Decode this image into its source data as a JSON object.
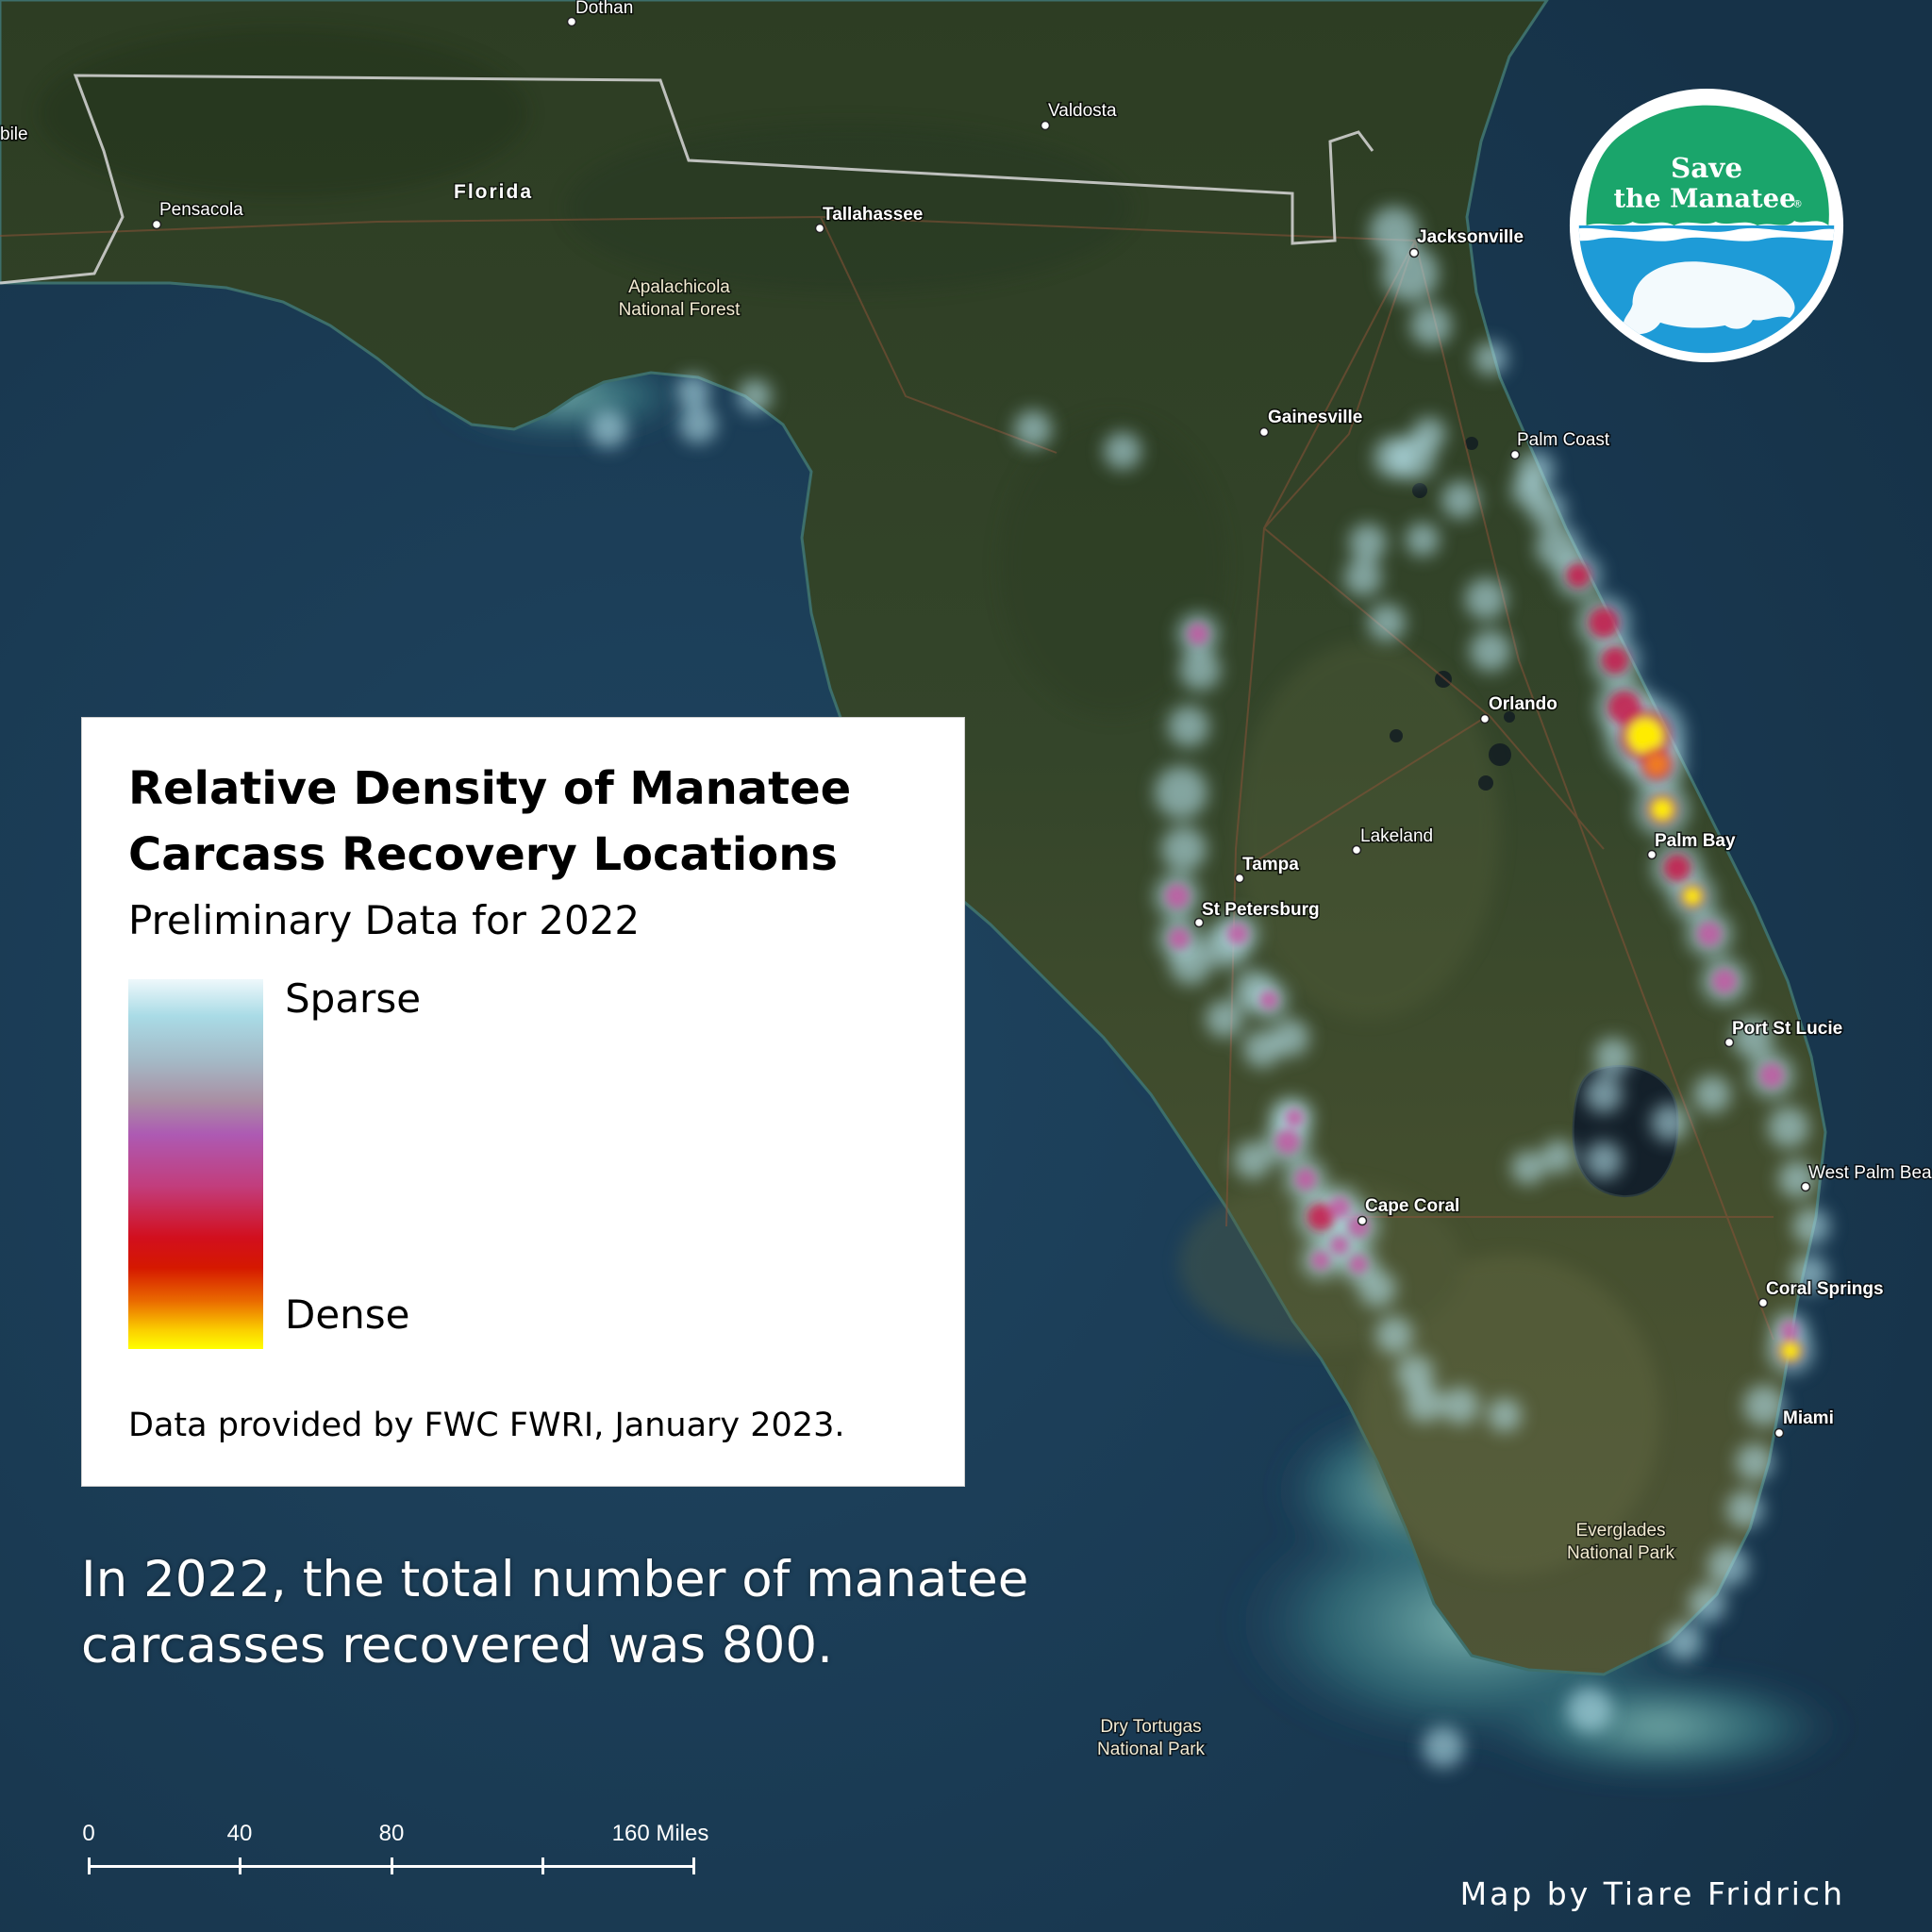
{
  "map": {
    "state_label": "Florida",
    "cities": [
      {
        "name": "Dothan",
        "bold": false
      },
      {
        "name": "Valdosta",
        "bold": false
      },
      {
        "name": "bile",
        "bold": false
      },
      {
        "name": "Pensacola",
        "bold": false
      },
      {
        "name": "Tallahassee",
        "bold": true
      },
      {
        "name": "Jacksonville",
        "bold": true
      },
      {
        "name": "Gainesville",
        "bold": true
      },
      {
        "name": "Palm Coast",
        "bold": false
      },
      {
        "name": "Orlando",
        "bold": true
      },
      {
        "name": "Lakeland",
        "bold": false
      },
      {
        "name": "Tampa",
        "bold": true
      },
      {
        "name": "St Petersburg",
        "bold": true
      },
      {
        "name": "Palm Bay",
        "bold": true
      },
      {
        "name": "Port St Lucie",
        "bold": true
      },
      {
        "name": "West Palm Bea",
        "bold": false
      },
      {
        "name": "Cape Coral",
        "bold": true
      },
      {
        "name": "Coral Springs",
        "bold": true
      },
      {
        "name": "Miami",
        "bold": true
      }
    ],
    "parks": [
      {
        "line1": "Apalachicola",
        "line2": "National Forest"
      },
      {
        "line1": "Everglades",
        "line2": "National Park"
      },
      {
        "line1": "Dry Tortugas",
        "line2": "National Park"
      }
    ]
  },
  "legend": {
    "title": "Relative Density of Manatee Carcass Recovery Locations",
    "subtitle": "Preliminary Data for 2022",
    "sparse_label": "Sparse",
    "dense_label": "Dense",
    "credit": "Data provided by FWC FWRI, January 2023.",
    "ramp_colors": [
      "#a9dbe6",
      "#ad5ab3",
      "#d20f1d",
      "#ea6a00",
      "#ffff00"
    ]
  },
  "summary": "In 2022, the total number of manatee carcasses recovered was 800.",
  "scalebar": {
    "labels": [
      "0",
      "40",
      "80",
      "160 Miles"
    ],
    "ticks_miles": [
      0,
      40,
      80,
      120,
      160
    ]
  },
  "credit": "Map by Tiare Fridrich",
  "logo": {
    "line1": "Save",
    "line2": "the Manatee",
    "registered_mark": "®",
    "color": "#1aa56b",
    "water_color": "#1e9bd7"
  }
}
